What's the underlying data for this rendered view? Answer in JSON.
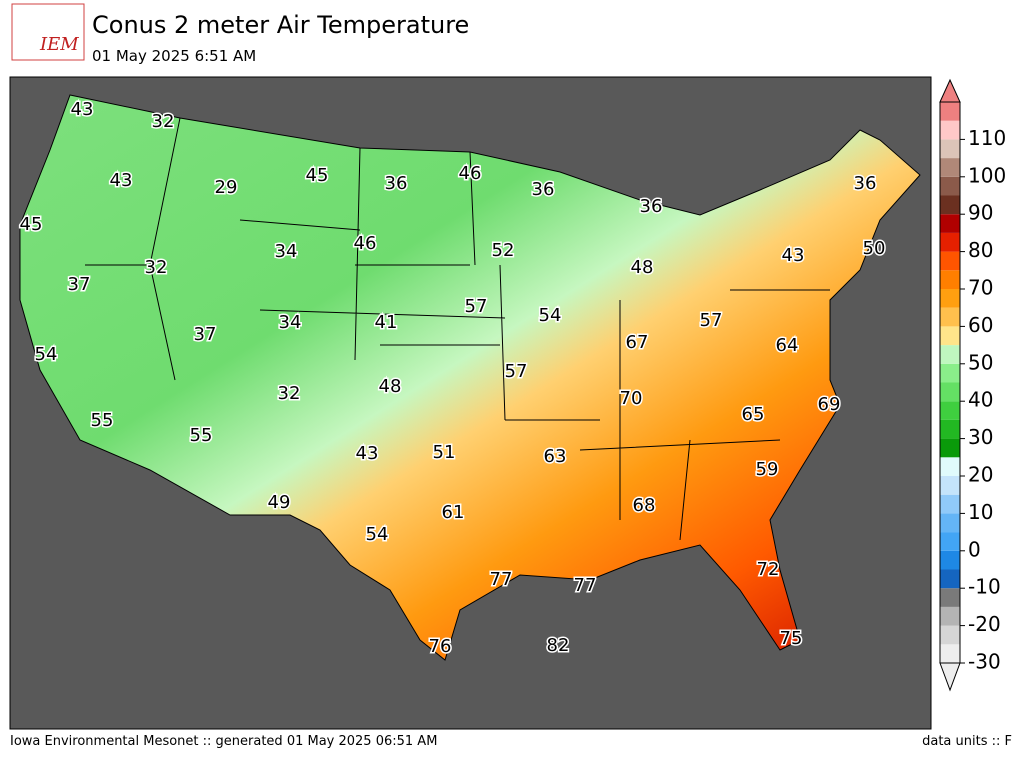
{
  "header": {
    "logo": "IEM",
    "title": "Conus 2 meter Air Temperature",
    "subtitle": "01 May 2025 6:51 AM"
  },
  "map": {
    "labels": [
      43,
      32,
      43,
      29,
      45,
      36,
      46,
      36,
      36,
      36,
      45,
      34,
      46,
      52,
      48,
      43,
      50,
      37,
      32,
      57,
      54,
      57,
      34,
      41,
      37,
      67,
      64,
      54,
      57,
      48,
      32,
      70,
      65,
      69,
      55,
      55,
      43,
      51,
      63,
      59,
      49,
      61,
      68,
      54,
      72,
      77,
      77,
      75,
      76,
      82
    ]
  },
  "colorbar": {
    "range": [
      -30,
      120
    ],
    "ticks": [
      -30,
      -20,
      -10,
      0,
      10,
      20,
      30,
      40,
      50,
      60,
      70,
      80,
      90,
      100,
      110
    ],
    "colors": [
      "#eeeeee",
      "#d6d6d6",
      "#b4b4b4",
      "#7a7a7a",
      "#1565c0",
      "#1e88e5",
      "#42a5f5",
      "#64b5f6",
      "#90caf9",
      "#c4e4fb",
      "#e0fbfc",
      "#0a9a0a",
      "#22b822",
      "#3fcf3f",
      "#64e064",
      "#8aee8a",
      "#bff7bf",
      "#ffe58a",
      "#ffc04d",
      "#ff9f10",
      "#ff7f00",
      "#ff5500",
      "#e52000",
      "#b00000",
      "#6b3020",
      "#8b5a4a",
      "#b08878",
      "#dcc4b8",
      "#ffc8c8",
      "#ee8080"
    ]
  },
  "footer": {
    "left": "Iowa Environmental Mesonet :: generated 01 May 2025 06:51 AM",
    "right": "data units :: F"
  }
}
